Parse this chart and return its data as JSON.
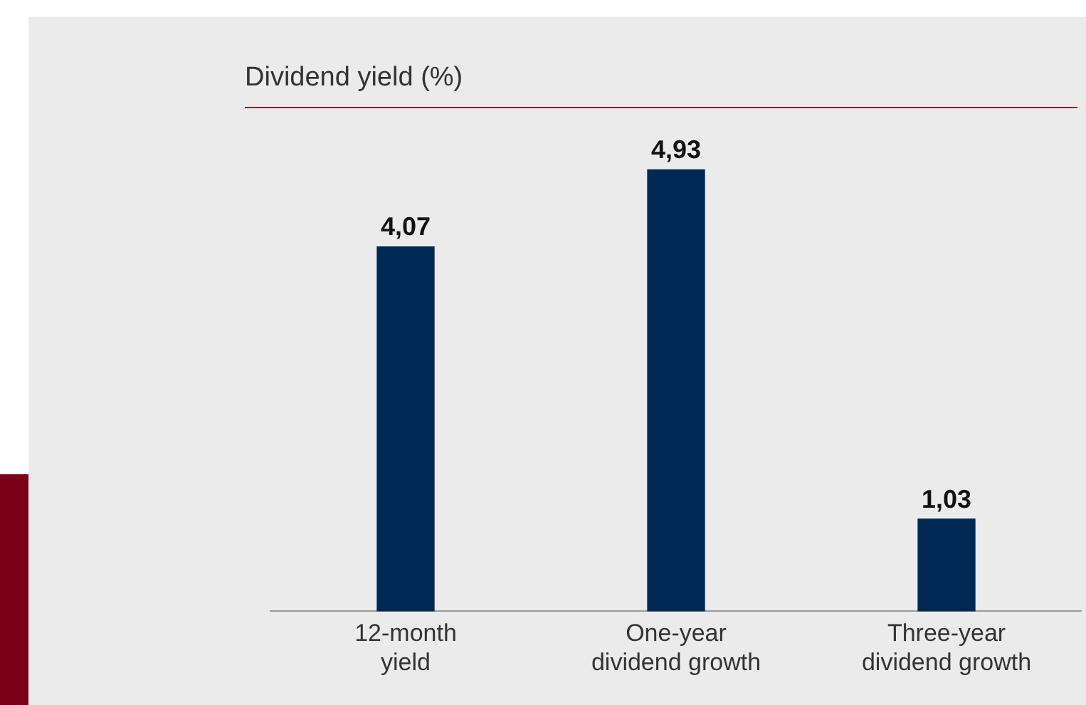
{
  "chart_data": {
    "type": "bar",
    "title": "Dividend yield (%)",
    "categories": [
      "12-month yield",
      "One-year dividend growth",
      "Three-year dividend growth"
    ],
    "values": [
      4.07,
      4.93,
      1.03
    ],
    "value_labels": [
      "4,07",
      "4,93",
      "1,03"
    ],
    "color": "#002855",
    "grid": false,
    "legend": false
  }
}
